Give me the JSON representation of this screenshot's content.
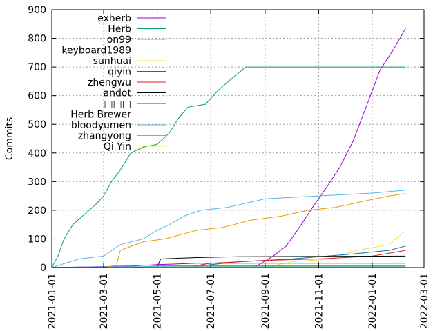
{
  "chart_data": {
    "type": "line",
    "title": "",
    "xlabel": "",
    "ylabel": "Commits",
    "ylim": [
      0,
      900
    ],
    "xlim": [
      "2021-01-01",
      "2022-03-01"
    ],
    "yticks": [
      0,
      100,
      200,
      300,
      400,
      500,
      600,
      700,
      800,
      900
    ],
    "xticks": [
      "2021-01-01",
      "2021-03-01",
      "2021-05-01",
      "2021-07-01",
      "2021-09-01",
      "2021-11-01",
      "2022-01-01",
      "2022-03-01"
    ],
    "grid": true,
    "legend_position": "top-left",
    "series": [
      {
        "name": "exherb",
        "color": "#9400d3",
        "points": [
          [
            "2021-08-15",
            0
          ],
          [
            "2021-08-25",
            10
          ],
          [
            "2021-09-10",
            40
          ],
          [
            "2021-09-25",
            75
          ],
          [
            "2021-10-10",
            140
          ],
          [
            "2021-10-25",
            210
          ],
          [
            "2021-11-10",
            280
          ],
          [
            "2021-11-25",
            350
          ],
          [
            "2021-12-10",
            440
          ],
          [
            "2021-12-25",
            560
          ],
          [
            "2022-01-10",
            690
          ],
          [
            "2022-01-25",
            760
          ],
          [
            "2022-02-08",
            835
          ]
        ]
      },
      {
        "name": "Herb",
        "color": "#009e73",
        "points": [
          [
            "2021-01-01",
            0
          ],
          [
            "2021-01-08",
            40
          ],
          [
            "2021-01-15",
            100
          ],
          [
            "2021-01-25",
            150
          ],
          [
            "2021-02-05",
            180
          ],
          [
            "2021-02-20",
            220
          ],
          [
            "2021-03-01",
            250
          ],
          [
            "2021-03-10",
            300
          ],
          [
            "2021-03-20",
            340
          ],
          [
            "2021-04-01",
            400
          ],
          [
            "2021-04-15",
            420
          ],
          [
            "2021-05-01",
            430
          ],
          [
            "2021-05-15",
            470
          ],
          [
            "2021-05-25",
            520
          ],
          [
            "2021-06-05",
            560
          ],
          [
            "2021-06-25",
            570
          ],
          [
            "2021-07-10",
            620
          ],
          [
            "2021-07-25",
            660
          ],
          [
            "2021-08-10",
            700
          ],
          [
            "2022-02-08",
            700
          ]
        ]
      },
      {
        "name": "on99",
        "color": "#56b4e9",
        "points": [
          [
            "2021-01-01",
            0
          ],
          [
            "2021-02-01",
            30
          ],
          [
            "2021-03-01",
            40
          ],
          [
            "2021-03-20",
            80
          ],
          [
            "2021-04-15",
            100
          ],
          [
            "2021-05-01",
            130
          ],
          [
            "2021-05-15",
            150
          ],
          [
            "2021-06-01",
            180
          ],
          [
            "2021-06-20",
            200
          ],
          [
            "2021-07-20",
            210
          ],
          [
            "2021-09-01",
            240
          ],
          [
            "2021-11-01",
            250
          ],
          [
            "2022-01-01",
            260
          ],
          [
            "2022-02-08",
            270
          ]
        ]
      },
      {
        "name": "keyboard1989",
        "color": "#e69f00",
        "points": [
          [
            "2021-03-15",
            0
          ],
          [
            "2021-03-20",
            60
          ],
          [
            "2021-04-15",
            90
          ],
          [
            "2021-05-10",
            100
          ],
          [
            "2021-06-15",
            130
          ],
          [
            "2021-07-15",
            140
          ],
          [
            "2021-08-15",
            165
          ],
          [
            "2021-09-20",
            180
          ],
          [
            "2021-10-20",
            200
          ],
          [
            "2021-11-20",
            210
          ],
          [
            "2021-12-20",
            230
          ],
          [
            "2022-01-20",
            250
          ],
          [
            "2022-02-08",
            258
          ]
        ]
      },
      {
        "name": "sunhuai",
        "color": "#f0e442",
        "points": [
          [
            "2021-09-01",
            0
          ],
          [
            "2021-10-01",
            20
          ],
          [
            "2021-11-15",
            30
          ],
          [
            "2021-12-15",
            60
          ],
          [
            "2022-01-20",
            80
          ],
          [
            "2022-02-01",
            110
          ],
          [
            "2022-02-08",
            128
          ]
        ]
      },
      {
        "name": "qiyin",
        "color": "#0072b2",
        "points": [
          [
            "2021-06-01",
            0
          ],
          [
            "2021-08-01",
            20
          ],
          [
            "2021-10-01",
            30
          ],
          [
            "2021-12-01",
            45
          ],
          [
            "2022-01-20",
            60
          ],
          [
            "2022-02-08",
            75
          ]
        ]
      },
      {
        "name": "zhengwu",
        "color": "#e51e10",
        "points": [
          [
            "2021-06-01",
            0
          ],
          [
            "2021-07-01",
            15
          ],
          [
            "2021-09-01",
            25
          ],
          [
            "2021-11-01",
            30
          ],
          [
            "2022-01-01",
            40
          ],
          [
            "2022-02-08",
            60
          ]
        ]
      },
      {
        "name": "andot",
        "color": "#000000",
        "points": [
          [
            "2021-05-01",
            0
          ],
          [
            "2021-05-05",
            30
          ],
          [
            "2021-06-15",
            35
          ],
          [
            "2021-08-01",
            38
          ],
          [
            "2022-02-08",
            40
          ]
        ]
      },
      {
        "name": "□□□",
        "color": "#9400d3",
        "points": [
          [
            "2021-01-01",
            0
          ],
          [
            "2021-04-01",
            5
          ],
          [
            "2021-05-01",
            10
          ],
          [
            "2021-06-15",
            15
          ],
          [
            "2022-02-08",
            15
          ]
        ]
      },
      {
        "name": "Herb Brewer",
        "color": "#009e73",
        "points": [
          [
            "2021-04-01",
            0
          ],
          [
            "2021-05-01",
            5
          ],
          [
            "2022-02-08",
            5
          ]
        ]
      },
      {
        "name": "bloodyumen",
        "color": "#56b4e9",
        "points": [
          [
            "2021-01-01",
            0
          ],
          [
            "2021-03-01",
            3
          ],
          [
            "2022-02-08",
            3
          ]
        ]
      },
      {
        "name": "zhangyong",
        "color": "#e69f00",
        "points": [
          [
            "2021-03-01",
            0
          ],
          [
            "2021-03-15",
            8
          ],
          [
            "2022-02-08",
            8
          ]
        ]
      },
      {
        "name": "Qi Yin",
        "color": "#f0e442",
        "points": [
          [
            "2021-04-01",
            0
          ],
          [
            "2021-05-01",
            2
          ],
          [
            "2022-02-08",
            2
          ]
        ]
      }
    ]
  }
}
